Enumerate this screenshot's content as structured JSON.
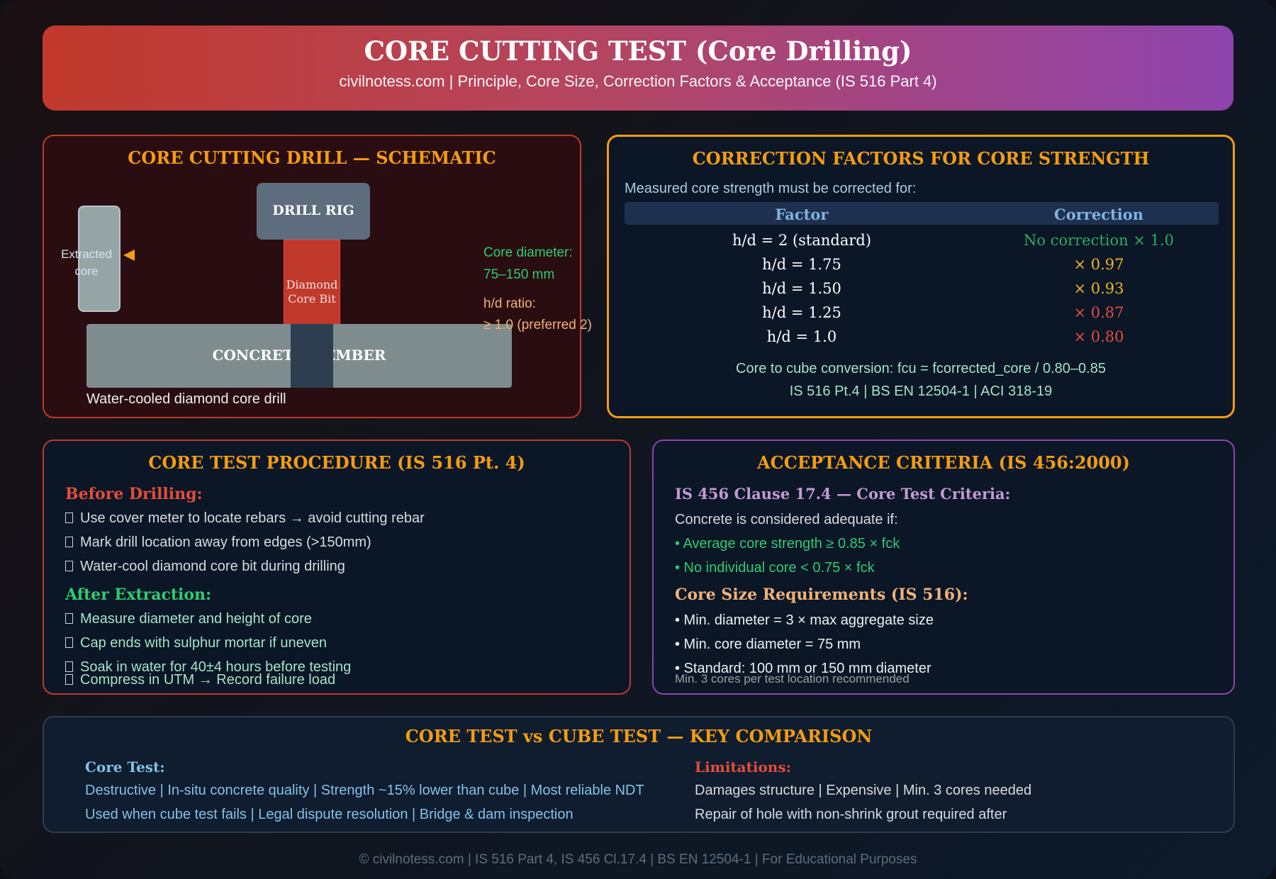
{
  "header": {
    "title": "CORE CUTTING TEST (Core Drilling)",
    "subtitle": "civilnotess.com | Principle, Core Size, Correction Factors & Acceptance (IS 516 Part 4)"
  },
  "schematic": {
    "title": "CORE CUTTING DRILL — SCHEMATIC",
    "drill_rig": "DRILL RIG",
    "bit_line1": "Diamond",
    "bit_line2": "Core Bit",
    "member": "CONCRETE MEMBER",
    "core_line1": "Extracted",
    "core_line2": "core",
    "diameter_label": "Core diameter:",
    "diameter_value": "75–150 mm",
    "hd_label": "h/d ratio:",
    "hd_value": "≥ 1.0 (preferred 2)",
    "caption": "Water-cooled diamond core drill"
  },
  "correction": {
    "title": "CORRECTION FACTORS FOR CORE STRENGTH",
    "intro": "Measured core strength must be corrected for:",
    "col_factor": "Factor",
    "col_correction": "Correction",
    "rows": [
      {
        "factor": "h/d = 2 (standard)",
        "correction": "No correction × 1.0",
        "color": "#27ae60"
      },
      {
        "factor": "h/d = 1.75",
        "correction": "× 0.97",
        "color": "#f0b429"
      },
      {
        "factor": "h/d = 1.50",
        "correction": "× 0.93",
        "color": "#f0b429"
      },
      {
        "factor": "h/d = 1.25",
        "correction": "× 0.87",
        "color": "#e74c3c"
      },
      {
        "factor": "h/d = 1.0",
        "correction": "× 0.80",
        "color": "#e74c3c"
      }
    ],
    "conversion": "Core to cube conversion: fcu = fcorrected_core / 0.80–0.85",
    "standards": "IS 516 Pt.4 | BS EN 12504-1 | ACI 318-19"
  },
  "procedure": {
    "title": "CORE TEST PROCEDURE (IS 516 Pt. 4)",
    "before_heading": "Before Drilling:",
    "before_items": [
      "Use cover meter to locate rebars → avoid cutting rebar",
      "Mark drill location away from edges (>150mm)",
      "Water-cool diamond core bit during drilling"
    ],
    "after_heading": "After Extraction:",
    "after_items": [
      "Measure diameter and height of core",
      "Cap ends with sulphur mortar if uneven",
      "Soak in water for 40±4 hours before testing",
      "Compress in UTM → Record failure load"
    ]
  },
  "acceptance": {
    "title": "ACCEPTANCE CRITERIA (IS 456:2000)",
    "clause_heading": "IS 456 Clause 17.4 — Core Test Criteria:",
    "adequate_intro": "Concrete is considered adequate if:",
    "criteria": [
      "• Average core strength ≥ 0.85 × fck",
      "• No individual core < 0.75 × fck"
    ],
    "size_heading": "Core Size Requirements (IS 516):",
    "size_items": [
      "• Min. diameter = 3 × max aggregate size",
      "• Min. core diameter = 75 mm",
      "• Standard: 100 mm or 150 mm diameter"
    ],
    "note": "Min. 3 cores per test location recommended"
  },
  "comparison": {
    "title": "CORE TEST vs CUBE TEST — KEY COMPARISON",
    "core_heading": "Core Test:",
    "core_line1": "Destructive | In-situ concrete quality | Strength ~15% lower than cube | Most reliable NDT",
    "core_line2": "Used when cube test fails | Legal dispute resolution | Bridge & dam inspection",
    "limit_heading": "Limitations:",
    "limit_line1": "Damages structure | Expensive | Min. 3 cores needed",
    "limit_line2": "Repair of hole with non-shrink grout required after"
  },
  "footer": "© civilnotess.com | IS 516 Part 4, IS 456 Cl.17.4 | BS EN 12504-1 | For Educational Purposes"
}
